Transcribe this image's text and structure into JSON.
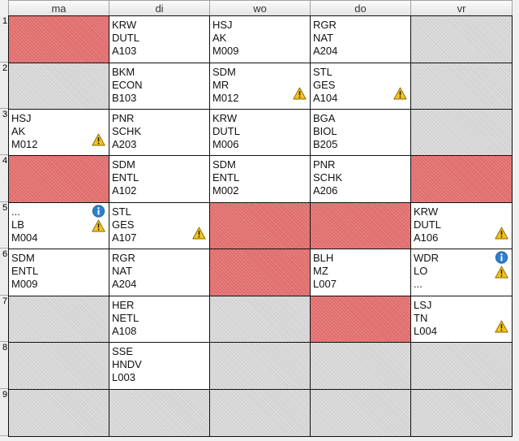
{
  "days": [
    "ma",
    "di",
    "wo",
    "do",
    "vr"
  ],
  "periods": [
    "1",
    "2",
    "3",
    "4",
    "5",
    "6",
    "7",
    "8",
    "9"
  ],
  "grid": [
    [
      {
        "state": "unavailable"
      },
      {
        "state": "lesson",
        "lines": [
          "KRW",
          "DUTL",
          "A103"
        ]
      },
      {
        "state": "lesson",
        "lines": [
          "HSJ",
          "AK",
          "M009"
        ]
      },
      {
        "state": "lesson",
        "lines": [
          "RGR",
          "NAT",
          "A204"
        ]
      },
      {
        "state": "empty"
      }
    ],
    [
      {
        "state": "empty"
      },
      {
        "state": "lesson",
        "lines": [
          "BKM",
          "ECON",
          "B103"
        ]
      },
      {
        "state": "lesson",
        "lines": [
          "SDM",
          "MR",
          "M012"
        ],
        "warning": true
      },
      {
        "state": "lesson",
        "lines": [
          "STL",
          "GES",
          "A104"
        ],
        "warning": true
      },
      {
        "state": "empty"
      }
    ],
    [
      {
        "state": "lesson",
        "lines": [
          "HSJ",
          "AK",
          "M012"
        ],
        "warning": true
      },
      {
        "state": "lesson",
        "lines": [
          "PNR",
          "SCHK",
          "A203"
        ]
      },
      {
        "state": "lesson",
        "lines": [
          "KRW",
          "DUTL",
          "M006"
        ]
      },
      {
        "state": "lesson",
        "lines": [
          "BGA",
          "BIOL",
          "B205"
        ]
      },
      {
        "state": "empty"
      }
    ],
    [
      {
        "state": "unavailable"
      },
      {
        "state": "lesson",
        "lines": [
          "SDM",
          "ENTL",
          "A102"
        ]
      },
      {
        "state": "lesson",
        "lines": [
          "SDM",
          "ENTL",
          "M002"
        ]
      },
      {
        "state": "lesson",
        "lines": [
          "PNR",
          "SCHK",
          "A206"
        ]
      },
      {
        "state": "unavailable"
      }
    ],
    [
      {
        "state": "lesson",
        "lines": [
          "...",
          "LB",
          "M004"
        ],
        "warning": true,
        "info": true
      },
      {
        "state": "lesson",
        "lines": [
          "STL",
          "GES",
          "A107"
        ],
        "warning": true
      },
      {
        "state": "unavailable"
      },
      {
        "state": "unavailable"
      },
      {
        "state": "lesson",
        "lines": [
          "KRW",
          "DUTL",
          "A106"
        ],
        "warning": true
      }
    ],
    [
      {
        "state": "lesson",
        "lines": [
          "SDM",
          "ENTL",
          "M009"
        ]
      },
      {
        "state": "lesson",
        "lines": [
          "RGR",
          "NAT",
          "A204"
        ]
      },
      {
        "state": "unavailable"
      },
      {
        "state": "lesson",
        "lines": [
          "BLH",
          "MZ",
          "L007"
        ]
      },
      {
        "state": "lesson",
        "lines": [
          "WDR",
          "LO",
          "..."
        ],
        "warning": true,
        "info": true
      }
    ],
    [
      {
        "state": "empty"
      },
      {
        "state": "lesson",
        "lines": [
          "HER",
          "NETL",
          "A108"
        ]
      },
      {
        "state": "empty"
      },
      {
        "state": "unavailable"
      },
      {
        "state": "lesson",
        "lines": [
          "LSJ",
          "TN",
          "L004"
        ],
        "warning": true
      }
    ],
    [
      {
        "state": "empty"
      },
      {
        "state": "lesson",
        "lines": [
          "SSE",
          "HNDV",
          "L003"
        ]
      },
      {
        "state": "empty"
      },
      {
        "state": "empty"
      },
      {
        "state": "empty"
      }
    ],
    [
      {
        "state": "empty"
      },
      {
        "state": "empty"
      },
      {
        "state": "empty"
      },
      {
        "state": "empty"
      },
      {
        "state": "empty"
      }
    ]
  ],
  "icons": {
    "warning": "warning-icon",
    "info": "info-icon"
  },
  "colors": {
    "unavailable": "#e06c6c",
    "empty": "#d2d2d2",
    "lesson": "#ffffff",
    "warning": "#f5c21b",
    "info": "#2f7fd1"
  }
}
